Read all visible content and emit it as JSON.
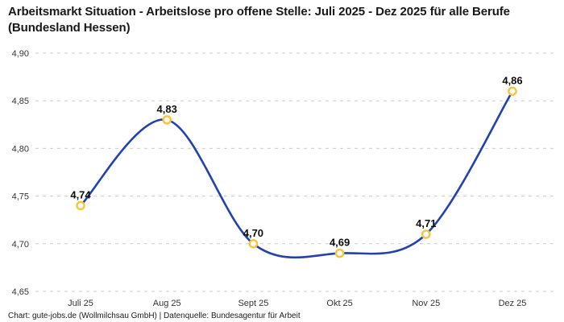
{
  "header": {
    "title": "Arbeitsmarkt Situation - Arbeitslose pro offene Stelle: Juli 2025 - Dez 2025 für alle Berufe (Bundesland Hessen)"
  },
  "footer": {
    "credit": "Chart: gute-jobs.de (Wollmilchsau GmbH) | Datenquelle: Bundesagentur für Arbeit"
  },
  "chart_data": {
    "type": "line",
    "title": "Arbeitsmarkt Situation - Arbeitslose pro offene Stelle: Juli 2025 - Dez 2025 für alle Berufe (Bundesland Hessen)",
    "source": "Chart: gute-jobs.de (Wollmilchsau GmbH) | Datenquelle: Bundesagentur für Arbeit",
    "categories": [
      "Juli 25",
      "Aug 25",
      "Sept 25",
      "Okt 25",
      "Nov 25",
      "Dez 25"
    ],
    "values": [
      4.74,
      4.83,
      4.7,
      4.69,
      4.71,
      4.86
    ],
    "point_labels": [
      "4,74",
      "4,83",
      "4,70",
      "4,69",
      "4,71",
      "4,86"
    ],
    "ylim": [
      4.65,
      4.9
    ],
    "y_ticks": [
      4.65,
      4.7,
      4.75,
      4.8,
      4.85,
      4.9
    ],
    "y_tick_labels": [
      "4,65",
      "4,70",
      "4,75",
      "4,80",
      "4,85",
      "4,90"
    ],
    "xlabel": "",
    "ylabel": "",
    "legend": "none",
    "grid": "horizontal-dashed",
    "curve": "smooth",
    "colors": {
      "line": "#2142b0",
      "marker_ring": "#fbc437",
      "marker_fill": "#ffffff",
      "grid": "#cccccc",
      "tick_text": "#333333",
      "point_label_text": "#0d0d0d"
    }
  }
}
